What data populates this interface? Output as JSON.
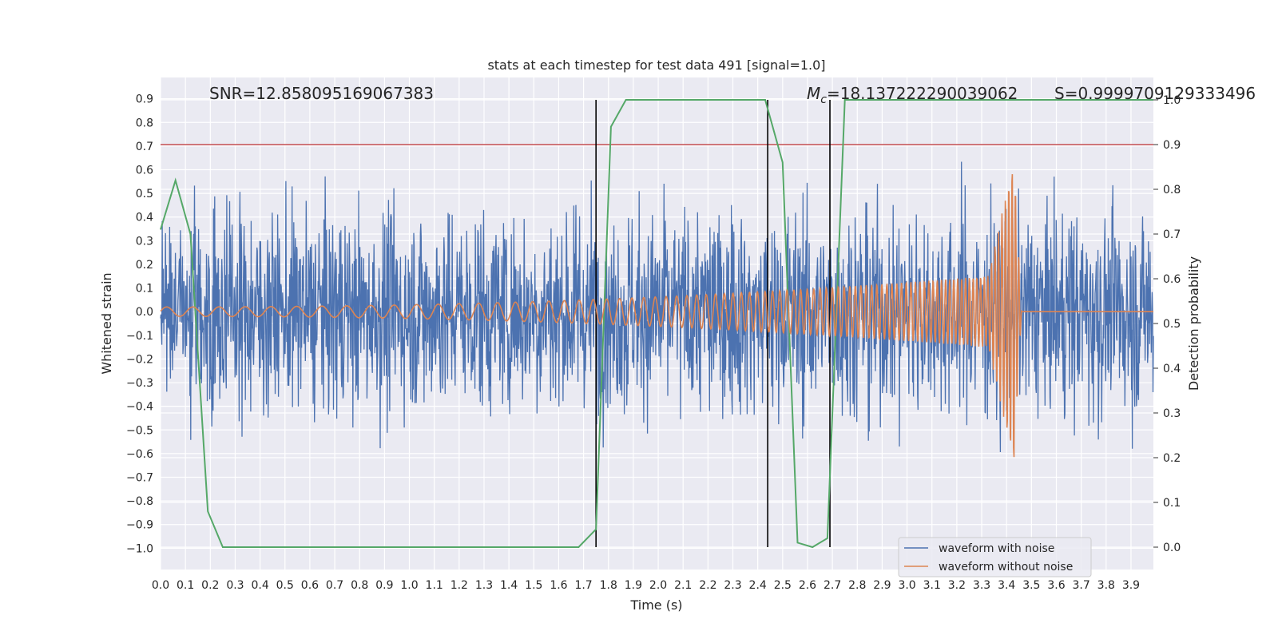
{
  "chart_data": {
    "type": "line",
    "title": "stats at each timestep for test data 491 [signal=1.0]",
    "xlabel": "Time (s)",
    "ylabel": "Whitened strain",
    "y2label": "Detection probability",
    "xlim": [
      0.0,
      3.99
    ],
    "ylim": [
      -1.09,
      0.99
    ],
    "y2lim": [
      -0.05,
      1.05
    ],
    "x_ticks": [
      "0.0",
      "0.1",
      "0.2",
      "0.3",
      "0.4",
      "0.5",
      "0.6",
      "0.7",
      "0.8",
      "0.9",
      "1.0",
      "1.1",
      "1.2",
      "1.3",
      "1.4",
      "1.5",
      "1.6",
      "1.7",
      "1.8",
      "1.9",
      "2.0",
      "2.1",
      "2.2",
      "2.3",
      "2.4",
      "2.5",
      "2.6",
      "2.7",
      "2.8",
      "2.9",
      "3.0",
      "3.1",
      "3.2",
      "3.3",
      "3.4",
      "3.5",
      "3.6",
      "3.7",
      "3.8",
      "3.9"
    ],
    "y_ticks": [
      "0.9",
      "0.8",
      "0.7",
      "0.6",
      "0.5",
      "0.4",
      "0.3",
      "0.2",
      "0.1",
      "0.0",
      "-0.1",
      "-0.2",
      "-0.3",
      "-0.4",
      "-0.5",
      "-0.6",
      "-0.7",
      "-0.8",
      "-0.9",
      "-1.0"
    ],
    "y2_ticks": [
      "1.0",
      "0.9",
      "0.8",
      "0.7",
      "0.6",
      "0.5",
      "0.4",
      "0.3",
      "0.2",
      "0.1",
      "0.0"
    ],
    "grid": true,
    "legend_position": "lower-right",
    "series": [
      {
        "name": "waveform with noise",
        "color": "#4c72b0",
        "note": "whitened noisy strain, amplitude roughly within -1.0 to 0.9"
      },
      {
        "name": "waveform without noise",
        "color": "#dd8452",
        "note": "chirp increasing in amplitude, merger near 3.43 s, flat after"
      },
      {
        "name": "detection probability",
        "color": "#55a868",
        "axis": "right",
        "x": [
          0.0,
          0.06,
          0.12,
          0.19,
          0.25,
          0.31,
          1.68,
          1.75,
          1.81,
          1.87,
          2.43,
          2.5,
          2.56,
          2.62,
          2.68,
          2.75,
          3.99
        ],
        "y": [
          0.71,
          0.82,
          0.7,
          0.08,
          0.0,
          0.0,
          0.0,
          0.04,
          0.94,
          1.0,
          1.0,
          0.86,
          0.01,
          0.0,
          0.02,
          1.0,
          1.0
        ]
      }
    ],
    "threshold": {
      "y2": 0.9,
      "color": "#c44e52"
    },
    "vertical_markers_x": [
      1.75,
      2.44,
      2.69
    ],
    "annotations": {
      "snr": "SNR=12.858095169067383",
      "mc_symbol": "M",
      "mc_sub": "c",
      "mc_value": "=18.137222290039062",
      "s": "S=0.9999709129333496"
    },
    "legend": [
      "waveform with noise",
      "waveform without noise"
    ],
    "chirp": {
      "start_amp": 0.02,
      "end_amp": 0.16,
      "f_start": 9.5,
      "f_end": 75,
      "merger_x": 3.43,
      "peak": 0.65,
      "trough": -0.62
    }
  }
}
